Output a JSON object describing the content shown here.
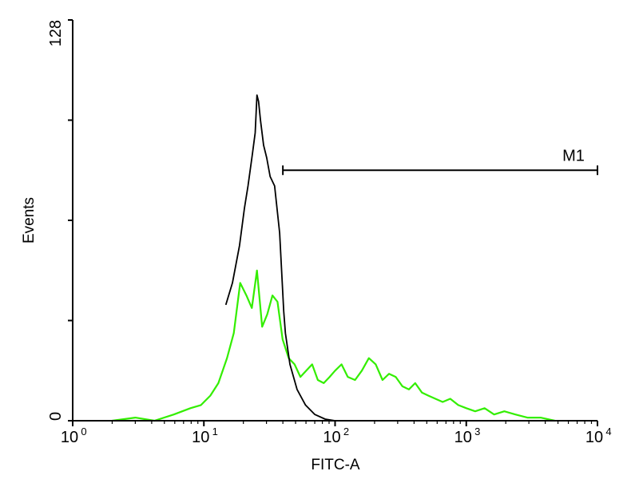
{
  "chart_data": {
    "type": "line",
    "xlabel": "FITC-A",
    "ylabel": "Events",
    "x_scale": "log",
    "xlim": [
      1,
      10000
    ],
    "ylim": [
      0,
      128
    ],
    "x_ticks": [
      {
        "base": "10",
        "exp": "0"
      },
      {
        "base": "10",
        "exp": "1"
      },
      {
        "base": "10",
        "exp": "2"
      },
      {
        "base": "10",
        "exp": "3"
      },
      {
        "base": "10",
        "exp": "4"
      }
    ],
    "y_tick_labels": [
      "0",
      "128"
    ],
    "grid": false,
    "marker": {
      "label": "M1",
      "x_start": 40,
      "x_end": 10000,
      "y": 80
    },
    "series": [
      {
        "color": "#000000",
        "x": [
          14.7,
          16.5,
          18.7,
          20.4,
          21.7,
          23.4,
          24.6,
          25.4,
          26.1,
          27.0,
          28.5,
          30.1,
          32.0,
          34.6,
          37.8,
          40.6,
          41.8,
          45.3,
          51.3,
          59.5,
          70.1,
          84.1,
          100
        ],
        "y": [
          37,
          44,
          56,
          68,
          75,
          85,
          92,
          104,
          102,
          96,
          88,
          84,
          78,
          75,
          60,
          35,
          28,
          18,
          10,
          5,
          2,
          0.5,
          0
        ]
      },
      {
        "color": "#33ee00",
        "x": [
          2.0,
          3.0,
          4.2,
          5.9,
          7.9,
          9.5,
          11.2,
          12.9,
          15.0,
          16.9,
          18.9,
          21.1,
          23.2,
          25.4,
          27.8,
          30.4,
          33.3,
          36.4,
          39.8,
          44.3,
          49.1,
          54.4,
          60.3,
          66.9,
          73.9,
          81.9,
          90.9,
          100,
          112,
          125,
          142,
          160,
          181,
          204,
          230,
          258,
          290,
          326,
          365,
          408,
          459,
          515,
          582,
          661,
          755,
          868,
          1000,
          1170,
          1380,
          1630,
          1950,
          2370,
          2920,
          3680,
          4730
        ],
        "y": [
          0,
          1,
          0,
          2,
          4,
          5,
          8,
          12,
          20,
          28,
          44,
          40,
          36,
          48,
          30,
          34,
          40,
          38,
          26,
          20,
          18,
          14,
          16,
          18,
          13,
          12,
          14,
          16,
          18,
          14,
          13,
          16,
          20,
          18,
          13,
          15,
          14,
          11,
          10,
          12,
          9,
          8,
          7,
          6,
          7,
          5,
          4,
          3,
          4,
          2,
          3,
          2,
          1,
          1,
          0
        ]
      }
    ]
  }
}
